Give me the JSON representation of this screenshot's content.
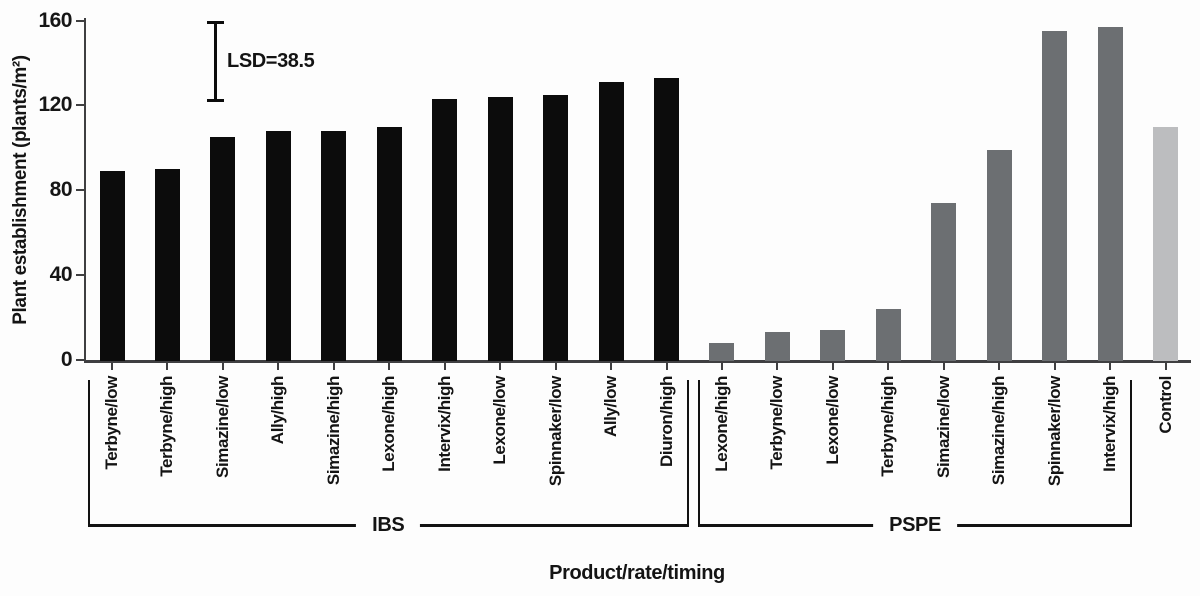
{
  "chart_data": {
    "type": "bar",
    "title": "",
    "ylabel": "Plant establishment (plants/m²)",
    "xlabel": "Product/rate/timing",
    "ylim": [
      0,
      160
    ],
    "yticks": [
      0,
      40,
      80,
      120,
      160
    ],
    "grid": false,
    "legend": "none",
    "lsd": {
      "label": "LSD=38.5",
      "from": 160,
      "to": 121.5
    },
    "groups": [
      {
        "name": "IBS",
        "bracket": true,
        "color": "#0c0c0c",
        "bars": [
          {
            "label": "Terbyne/low",
            "value": 89
          },
          {
            "label": "Terbyne/high",
            "value": 90
          },
          {
            "label": "Simazine/low",
            "value": 105
          },
          {
            "label": "Ally/high",
            "value": 108
          },
          {
            "label": "Simazine/high",
            "value": 108
          },
          {
            "label": "Lexone/high",
            "value": 110
          },
          {
            "label": "Intervix/high",
            "value": 123
          },
          {
            "label": "Lexone/low",
            "value": 124
          },
          {
            "label": "Spinnaker/low",
            "value": 125
          },
          {
            "label": "Ally/low",
            "value": 131
          },
          {
            "label": "Diuron/high",
            "value": 133
          }
        ]
      },
      {
        "name": "PSPE",
        "bracket": true,
        "color": "#6c6f72",
        "bars": [
          {
            "label": "Lexone/high",
            "value": 8
          },
          {
            "label": "Terbyne/low",
            "value": 13
          },
          {
            "label": "Lexone/low",
            "value": 14
          },
          {
            "label": "Terbyne/high",
            "value": 24
          },
          {
            "label": "Simazine/low",
            "value": 74
          },
          {
            "label": "Simazine/high",
            "value": 99
          },
          {
            "label": "Spinnaker/low",
            "value": 155
          },
          {
            "label": "Intervix/high",
            "value": 157
          }
        ]
      },
      {
        "name": "",
        "bracket": false,
        "color": "#bcbdbf",
        "bars": [
          {
            "label": "Control",
            "value": 110
          }
        ]
      }
    ],
    "colors": {
      "axis": "#3f3f41",
      "bar_ibs": "#0c0c0c",
      "bar_pspe": "#6c6f72",
      "bar_control": "#bcbdbf",
      "background": "#fdfdfd"
    }
  }
}
